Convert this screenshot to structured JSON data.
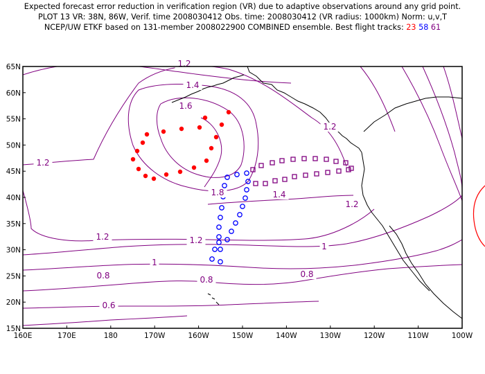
{
  "header": {
    "line1": "Expected forecast error reduction in verification region (VR) due to adaptive observations around any grid point.",
    "line2": "PLOT 13 VR: 38N, 86W, Verif. time 2008030412 Obs. time: 2008030412 (VR radius: 1000km) Norm: u,v,T",
    "line3_prefix": "NCEP/UW ETKF based on 131-member 2008022900 COMBINED ensemble.  Best flight tracks:",
    "tracks": [
      {
        "label": "23",
        "color": "#ff0000"
      },
      {
        "label": "58",
        "color": "#0000ff"
      },
      {
        "label": "61",
        "color": "#800080"
      }
    ]
  },
  "axes": {
    "x_ticks": [
      "160E",
      "170E",
      "180",
      "170W",
      "160W",
      "150W",
      "140W",
      "130W",
      "120W",
      "110W",
      "100W"
    ],
    "y_ticks": [
      "15N",
      "20N",
      "25N",
      "30N",
      "35N",
      "40N",
      "45N",
      "50N",
      "55N",
      "60N",
      "65N"
    ]
  },
  "contour_labels": [
    "1.2",
    "1.4",
    "1.6",
    "1.2",
    "1.2",
    "1.8",
    "1.4",
    "1.2",
    "1.2",
    "1.2",
    "1",
    "1",
    "0.8",
    "0.8",
    "0.8",
    "0.6"
  ],
  "colors": {
    "contour": "#800080",
    "coast": "#000000",
    "track23": "#ff0000",
    "track58": "#0000ff",
    "track61": "#800080",
    "vr_circle": "#ff0000"
  }
}
